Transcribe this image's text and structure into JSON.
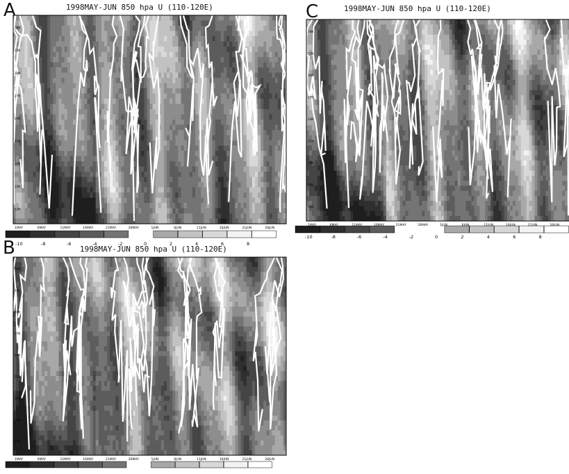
{
  "chart_data": [
    {
      "panel_label": "A",
      "type": "heatmap",
      "title": "1998MAY-JUN 850 hpa U (110-120E)",
      "y_ticks": [
        "12N",
        "15N",
        "18N",
        "21N",
        "24N",
        "27N",
        "30N",
        "33N",
        "36N"
      ],
      "x_ticks": [
        "1MAY",
        "6MAY",
        "11MAY",
        "16MAY",
        "21MAY",
        "26MAY",
        "1JUN",
        "6JUN",
        "11JUN",
        "16JUN",
        "21JUN",
        "26JUN"
      ],
      "colorbar": {
        "ticks": [
          "-10",
          "-8",
          "-6",
          "-4",
          "-2",
          "0",
          "2",
          "4",
          "6",
          "8"
        ]
      }
    },
    {
      "panel_label": "C",
      "type": "heatmap",
      "title": "1998MAY-JUN 850 hpa U (110-120E)",
      "y_ticks": [
        "12N",
        "15N",
        "18N",
        "21N",
        "24N",
        "27N",
        "30N",
        "33N",
        "36N"
      ],
      "x_ticks": [
        "1MAY",
        "6MAY",
        "11MAY",
        "16MAY",
        "21MAY",
        "26MAY",
        "1JUN",
        "6JUN",
        "11JUN",
        "16JUN",
        "21JUN",
        "26JUN"
      ],
      "colorbar": {
        "ticks": [
          "-10",
          "-8",
          "-6",
          "-4",
          "-2",
          "0",
          "2",
          "4",
          "6",
          "8"
        ]
      }
    },
    {
      "panel_label": "B",
      "type": "heatmap",
      "title": "1998MAY-JUN 850 hpa U (110-120E)",
      "y_ticks": [
        "12N",
        "15N",
        "18N",
        "21N",
        "24N",
        "27N",
        "30N",
        "33N",
        "36N"
      ],
      "x_ticks": [
        "1MAY",
        "6MAY",
        "11MAY",
        "16MAY",
        "21MAY",
        "26MAY",
        "1JUN",
        "6JUN",
        "11JUN",
        "16JUN",
        "21JUN",
        "26JUN"
      ],
      "colorbar": {
        "ticks": []
      }
    }
  ],
  "colors": {
    "levels": [
      "#1e1e1e",
      "#2f2f2f",
      "#454545",
      "#5c5c5c",
      "#747474",
      "#8d8d8d",
      "#a8a8a8",
      "#c2c2c2",
      "#d8d8d8",
      "#f2f2f2",
      "#ffffff"
    ]
  }
}
